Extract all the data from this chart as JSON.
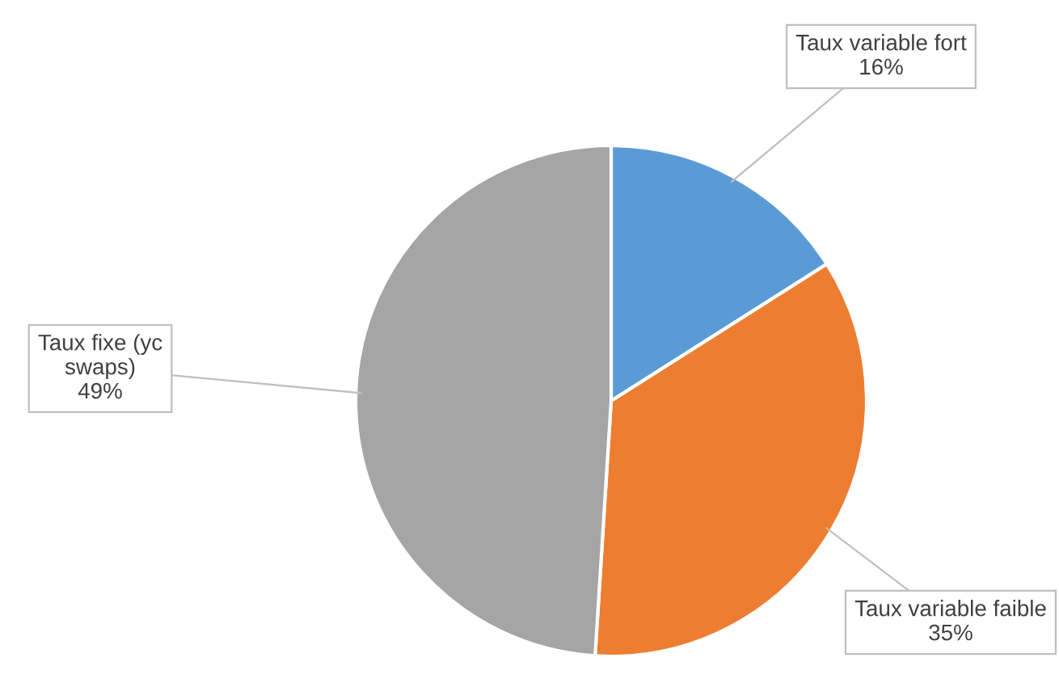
{
  "chart_data": {
    "type": "pie",
    "categories": [
      "Taux variable fort",
      "Taux variable faible",
      "Taux fixe (yc swaps)"
    ],
    "values": [
      16,
      35,
      49
    ],
    "colors": [
      "#5b9bd5",
      "#ed7d31",
      "#a5a5a5"
    ],
    "value_labels": [
      "16%",
      "35%",
      "49%"
    ]
  }
}
